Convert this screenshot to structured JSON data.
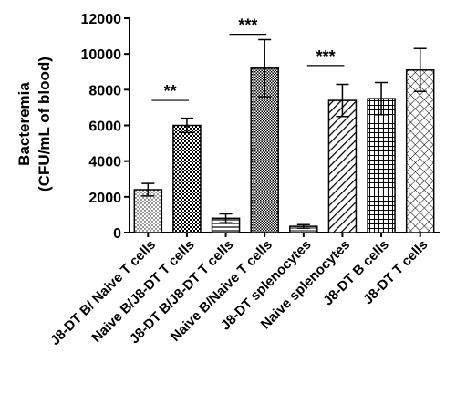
{
  "chart_data": {
    "type": "bar",
    "y_label": [
      "Bacteremia",
      "(CFU/mL of blood)"
    ],
    "categories": [
      "J8-DT B/ Naive T cells",
      "Naive B/J8-DT T cells",
      "J8-DT B/J8-DT T cells",
      "Naive B/Naive T cells",
      "J8-DT splenocytes",
      "Naive splenocytes",
      "J8-DT B cells",
      "J8-DT T cells"
    ],
    "values": [
      2400,
      6000,
      800,
      9200,
      350,
      7400,
      7500,
      9100
    ],
    "errors": [
      350,
      400,
      250,
      1600,
      100,
      900,
      900,
      1200
    ],
    "color": "#000000",
    "ylim": [
      0,
      12000
    ],
    "yticks": [
      0,
      2000,
      4000,
      6000,
      8000,
      10000,
      12000
    ],
    "grid": false,
    "annotations": [
      {
        "text": "**",
        "x": [
          0,
          1
        ],
        "y": 7400
      },
      {
        "text": "***",
        "x": [
          2,
          3
        ],
        "y": 11100
      },
      {
        "text": "***",
        "x": [
          4,
          5
        ],
        "y": 9350
      }
    ]
  }
}
